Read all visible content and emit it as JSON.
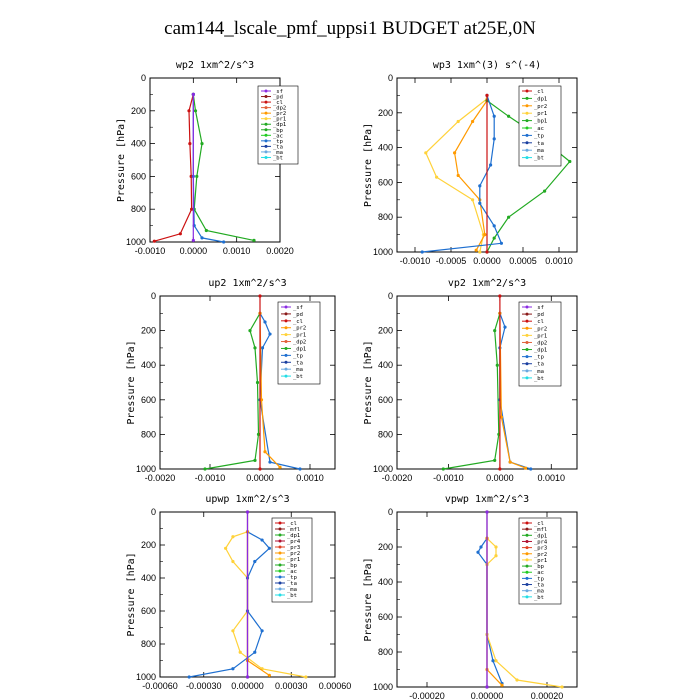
{
  "figure_title": "cam144_lscale_pmf_uppsi1  BUDGET at25E,0N",
  "colors": {
    "sf": "#8a2be2",
    "pd": "#8b1a1a",
    "cl": "#cc1111",
    "dp2": "#e0603a",
    "pr2": "#ff9a00",
    "pr1": "#ffd23a",
    "dp1": "#22aa22",
    "bp": "#22aa22",
    "ac": "#22cc22",
    "tp": "#1e6fd0",
    "ta": "#1a3fa0",
    "ma": "#6aa9e0",
    "bt": "#22dde6",
    "mfl": "#8b1a1a",
    "pr4": "#b01030",
    "pr3": "#e04020"
  },
  "chart_data": [
    {
      "type": "line",
      "title": "wp2  1xm^2/s^3",
      "ylabel": "Pressure [hPa]",
      "xlim": [
        -0.001,
        0.002
      ],
      "ylim": [
        1000,
        0
      ],
      "xticks": [
        -0.001,
        0.0,
        0.001,
        0.002
      ],
      "xtick_labels": [
        "-0.0010",
        "0.0000",
        "0.0010",
        "0.0020"
      ],
      "yticks": [
        0,
        200,
        400,
        600,
        800,
        1000
      ],
      "legend": [
        "_sf",
        "_pd",
        "_cl",
        "_dp2",
        "_pr2",
        "_pr1",
        "_dp1",
        "_bp",
        "_ac",
        "_tp",
        "_ta",
        "_ma",
        "_bt"
      ],
      "series": [
        {
          "name": "_cl",
          "color_key": "cl",
          "points": [
            [
              0,
              100
            ],
            [
              -0.0001,
              200
            ],
            [
              -8e-05,
              400
            ],
            [
              -5e-05,
              600
            ],
            [
              -4e-05,
              800
            ],
            [
              -0.0003,
              950
            ],
            [
              -0.0009,
              995
            ]
          ]
        },
        {
          "name": "_dp1",
          "color_key": "dp1",
          "points": [
            [
              0,
              100
            ],
            [
              5e-05,
              200
            ],
            [
              0.0002,
              400
            ],
            [
              8e-05,
              600
            ],
            [
              2e-05,
              800
            ],
            [
              0.0003,
              930
            ],
            [
              0.0014,
              990
            ]
          ]
        },
        {
          "name": "_tp",
          "color_key": "tp",
          "points": [
            [
              0,
              100
            ],
            [
              0,
              600
            ],
            [
              2e-05,
              900
            ],
            [
              0.0002,
              975
            ],
            [
              0.0007,
              1000
            ]
          ]
        },
        {
          "name": "_sf",
          "color_key": "sf",
          "points": [
            [
              0,
              100
            ],
            [
              0,
              990
            ]
          ]
        }
      ]
    },
    {
      "type": "line",
      "title": "wp3  1xm^(3) s^(-4)",
      "ylabel": "Pressure [hPa]",
      "xlim": [
        -0.00125,
        0.00125
      ],
      "ylim": [
        1000,
        0
      ],
      "xticks": [
        -0.001,
        -0.0005,
        0.0,
        0.0005,
        0.001
      ],
      "xtick_labels": [
        "-0.0010",
        "-0.0005",
        "0.0000",
        "0.0005",
        "0.0010"
      ],
      "yticks": [
        0,
        200,
        400,
        600,
        800,
        1000
      ],
      "legend": [
        "_cl",
        "_dp1",
        "_pr2",
        "_pr1",
        "_bp1",
        "_ac",
        "_tp",
        "_ta",
        "_ma",
        "_bt"
      ],
      "series": [
        {
          "name": "_pr1",
          "color_key": "pr1",
          "points": [
            [
              0,
              120
            ],
            [
              -0.0004,
              250
            ],
            [
              -0.00085,
              430
            ],
            [
              -0.0007,
              570
            ],
            [
              -0.0002,
              700
            ],
            [
              -5e-05,
              900
            ],
            [
              -0.0001,
              1000
            ]
          ]
        },
        {
          "name": "_pr2",
          "color_key": "pr2",
          "points": [
            [
              0,
              130
            ],
            [
              -0.0002,
              250
            ],
            [
              -0.00045,
              430
            ],
            [
              -0.0004,
              560
            ],
            [
              -0.0001,
              700
            ],
            [
              -3e-05,
              900
            ],
            [
              -0.00015,
              990
            ]
          ]
        },
        {
          "name": "_bp1",
          "color_key": "bp",
          "points": [
            [
              0,
              130
            ],
            [
              0.0003,
              220
            ],
            [
              0.0007,
              330
            ],
            [
              0.00115,
              480
            ],
            [
              0.0008,
              650
            ],
            [
              0.0003,
              800
            ],
            [
              0.0001,
              920
            ],
            [
              0,
              1000
            ]
          ]
        },
        {
          "name": "_tp",
          "color_key": "tp",
          "points": [
            [
              0,
              100
            ],
            [
              0.0001,
              220
            ],
            [
              0.0001,
              350
            ],
            [
              5e-05,
              500
            ],
            [
              -0.0001,
              620
            ],
            [
              -0.0001,
              720
            ],
            [
              0.0001,
              850
            ],
            [
              0.0002,
              950
            ],
            [
              -0.0009,
              1000
            ]
          ]
        },
        {
          "name": "_cl",
          "color_key": "cl",
          "points": [
            [
              0,
              100
            ],
            [
              0,
              1000
            ]
          ]
        }
      ]
    },
    {
      "type": "line",
      "title": "up2  1xm^2/s^3",
      "ylabel": "Pressure [hPa]",
      "xlim": [
        -0.002,
        0.0015
      ],
      "ylim": [
        1000,
        0
      ],
      "xticks": [
        -0.002,
        -0.001,
        0.0,
        0.001
      ],
      "xtick_labels": [
        "-0.0020",
        "-0.0010",
        "0.0000",
        "0.0010"
      ],
      "yticks": [
        0,
        200,
        400,
        600,
        800,
        1000
      ],
      "legend": [
        "_sf",
        "_pd",
        "_cl",
        "_pr2",
        "_pr1",
        "_dp2",
        "_dp1",
        "_tp",
        "_ta",
        "_ma",
        "_bt"
      ],
      "series": [
        {
          "name": "_dp1",
          "color_key": "dp1",
          "points": [
            [
              0,
              100
            ],
            [
              -0.0002,
              200
            ],
            [
              -0.0001,
              300
            ],
            [
              -5e-05,
              500
            ],
            [
              -3e-05,
              800
            ],
            [
              -0.0001,
              950
            ],
            [
              -0.0011,
              1000
            ]
          ]
        },
        {
          "name": "_tp",
          "color_key": "tp",
          "points": [
            [
              0,
              100
            ],
            [
              0.0001,
              150
            ],
            [
              0.0002,
              220
            ],
            [
              5e-05,
              300
            ],
            [
              0,
              600
            ],
            [
              0.0002,
              960
            ],
            [
              0.0008,
              1000
            ]
          ]
        },
        {
          "name": "_pr2",
          "color_key": "pr2",
          "points": [
            [
              0,
              100
            ],
            [
              3e-05,
              600
            ],
            [
              0.0001,
              900
            ],
            [
              0.0004,
              990
            ]
          ]
        },
        {
          "name": "_cl",
          "color_key": "cl",
          "points": [
            [
              0,
              0
            ],
            [
              0,
              1000
            ]
          ]
        }
      ]
    },
    {
      "type": "line",
      "title": "vp2  1xm^2/s^3",
      "ylabel": "Pressure [hPa]",
      "xlim": [
        -0.002,
        0.0015
      ],
      "ylim": [
        1000,
        0
      ],
      "xticks": [
        -0.002,
        -0.001,
        0.0,
        0.001
      ],
      "xtick_labels": [
        "-0.0020",
        "-0.0010",
        "0.0000",
        "0.0010"
      ],
      "yticks": [
        0,
        200,
        400,
        600,
        800,
        1000
      ],
      "legend": [
        "_sf",
        "_pd",
        "_cl",
        "_pr2",
        "_pr1",
        "_dp2",
        "_dp1",
        "_tp",
        "_ta",
        "_ma",
        "_bt"
      ],
      "series": [
        {
          "name": "_dp1",
          "color_key": "dp1",
          "points": [
            [
              0,
              100
            ],
            [
              -0.0001,
              200
            ],
            [
              -5e-05,
              400
            ],
            [
              -2e-05,
              800
            ],
            [
              -0.0001,
              950
            ],
            [
              -0.0011,
              1000
            ]
          ]
        },
        {
          "name": "_tp",
          "color_key": "tp",
          "points": [
            [
              0,
              100
            ],
            [
              0.0001,
              180
            ],
            [
              0,
              300
            ],
            [
              0,
              600
            ],
            [
              0.0002,
              960
            ],
            [
              0.0006,
              1000
            ]
          ]
        },
        {
          "name": "_pr2",
          "color_key": "pr2",
          "points": [
            [
              0,
              100
            ],
            [
              3e-05,
              700
            ],
            [
              0.0002,
              960
            ],
            [
              0.0005,
              995
            ]
          ]
        },
        {
          "name": "_cl",
          "color_key": "cl",
          "points": [
            [
              0,
              0
            ],
            [
              0,
              1000
            ]
          ]
        }
      ]
    },
    {
      "type": "line",
      "title": "upwp  1xm^2/s^3",
      "ylabel": "Pressure [hPa]",
      "xlim": [
        -0.0006,
        0.0006
      ],
      "ylim": [
        1000,
        0
      ],
      "xticks": [
        -0.0006,
        -0.0003,
        0.0,
        0.0003,
        0.0006
      ],
      "xtick_labels": [
        "-0.00060",
        "-0.00030",
        "0.00000",
        "0.00030",
        "0.00060"
      ],
      "yticks": [
        0,
        200,
        400,
        600,
        800,
        1000
      ],
      "legend": [
        "_cl",
        "_mfl",
        "_dp1",
        "_pr4",
        "_pr3",
        "_pr2",
        "_pr1",
        "_bp",
        "_ac",
        "_tp",
        "_ta",
        "_ma",
        "_bt"
      ],
      "series": [
        {
          "name": "_pr1",
          "color_key": "pr1",
          "points": [
            [
              0,
              120
            ],
            [
              -0.0001,
              150
            ],
            [
              -0.00015,
              220
            ],
            [
              -0.0001,
              300
            ],
            [
              0,
              400
            ],
            [
              0,
              600
            ],
            [
              -0.0001,
              720
            ],
            [
              -5e-05,
              850
            ],
            [
              0.0001,
              950
            ],
            [
              0.0004,
              1000
            ]
          ]
        },
        {
          "name": "_tp",
          "color_key": "tp",
          "points": [
            [
              0,
              120
            ],
            [
              0.0001,
              170
            ],
            [
              0.00015,
              220
            ],
            [
              5e-05,
              300
            ],
            [
              0,
              400
            ],
            [
              0,
              600
            ],
            [
              0.0001,
              720
            ],
            [
              5e-05,
              850
            ],
            [
              -0.0001,
              950
            ],
            [
              -0.0004,
              1000
            ]
          ]
        },
        {
          "name": "_pr2",
          "color_key": "pr2",
          "points": [
            [
              0,
              120
            ],
            [
              0,
              900
            ],
            [
              0.00015,
              990
            ]
          ]
        },
        {
          "name": "_mfl",
          "color_key": "mfl",
          "points": [
            [
              0,
              0
            ],
            [
              0,
              1000
            ]
          ]
        },
        {
          "name": "_cl",
          "color_key": "sf",
          "points": [
            [
              0,
              0
            ],
            [
              0,
              1000
            ]
          ]
        }
      ]
    },
    {
      "type": "line",
      "title": "vpwp  1xm^2/s^3",
      "ylabel": "Pressure [hPa]",
      "xlim": [
        -0.0003,
        0.0003
      ],
      "ylim": [
        1000,
        0
      ],
      "xticks": [
        -0.0002,
        0.0,
        0.0002
      ],
      "xtick_labels": [
        "-0.00020",
        "0.00000",
        "0.00020"
      ],
      "yticks": [
        0,
        200,
        400,
        600,
        800,
        1000
      ],
      "legend": [
        "_cl",
        "_mfl",
        "_dp1",
        "_pr4",
        "_pr3",
        "_pr2",
        "_pr1",
        "_bp",
        "_ac",
        "_tp",
        "_ta",
        "_ma",
        "_bt"
      ],
      "series": [
        {
          "name": "_tp",
          "color_key": "tp",
          "points": [
            [
              0,
              150
            ],
            [
              -2e-05,
              200
            ],
            [
              -3e-05,
              230
            ],
            [
              0,
              300
            ],
            [
              0,
              700
            ],
            [
              2e-05,
              850
            ],
            [
              5e-05,
              980
            ]
          ]
        },
        {
          "name": "_pr1",
          "color_key": "pr1",
          "points": [
            [
              0,
              150
            ],
            [
              3e-05,
              200
            ],
            [
              3e-05,
              250
            ],
            [
              0,
              300
            ],
            [
              0,
              700
            ],
            [
              3e-05,
              850
            ],
            [
              0.0001,
              960
            ],
            [
              0.00025,
              1000
            ]
          ]
        },
        {
          "name": "_pr2",
          "color_key": "pr2",
          "points": [
            [
              0,
              150
            ],
            [
              0,
              900
            ],
            [
              5e-05,
              990
            ]
          ]
        },
        {
          "name": "_mfl",
          "color_key": "mfl",
          "points": [
            [
              0,
              0
            ],
            [
              0,
              1000
            ]
          ]
        },
        {
          "name": "_cl",
          "color_key": "sf",
          "points": [
            [
              0,
              0
            ],
            [
              0,
              1000
            ]
          ]
        }
      ]
    }
  ]
}
